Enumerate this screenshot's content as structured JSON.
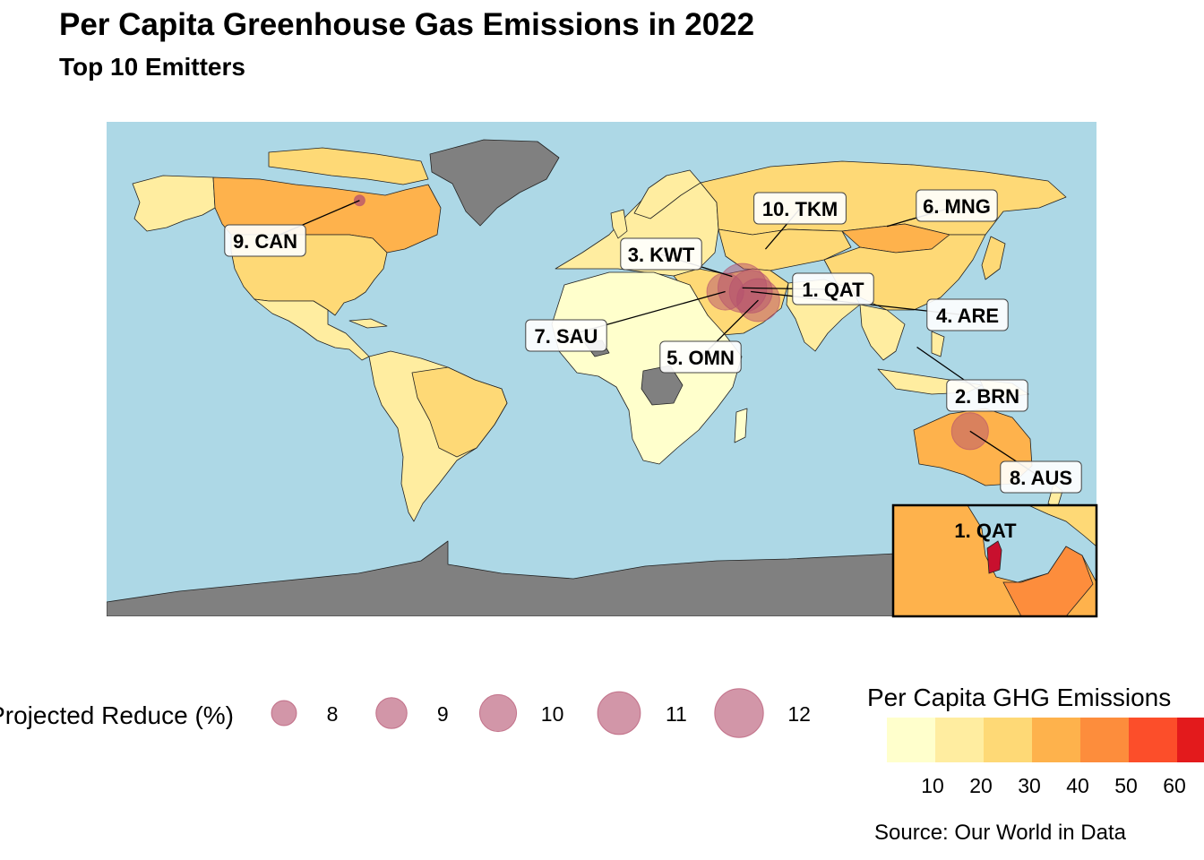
{
  "title": "Per Capita Greenhouse Gas Emissions in 2022",
  "subtitle": "Top 10 Emitters",
  "source": "Source: Our World in Data",
  "colors": {
    "ocean": "#add8e6",
    "no_data": "#808080",
    "bubble": "#b4506e",
    "inset_highlight": "#c8102e",
    "scale": [
      "#ffffcc",
      "#ffeda0",
      "#fed976",
      "#feb24c",
      "#fd8d3c",
      "#fc4e2a",
      "#e31a1c"
    ]
  },
  "chart_data": {
    "type": "map",
    "projection": "equirectangular",
    "variable": "Per Capita GHG Emissions",
    "top_emitters": [
      {
        "rank": 1,
        "code": "QAT",
        "label": "1. QAT",
        "lon": 51.2,
        "lat": 25.3,
        "reduce_pct": 12
      },
      {
        "rank": 2,
        "code": "BRN",
        "label": "2. BRN",
        "lon": 114.7,
        "lat": 4.5,
        "reduce_pct": null
      },
      {
        "rank": 3,
        "code": "KWT",
        "label": "3. KWT",
        "lon": 47.5,
        "lat": 29.3,
        "reduce_pct": null
      },
      {
        "rank": 4,
        "code": "ARE",
        "label": "4. ARE",
        "lon": 54.3,
        "lat": 24.0,
        "reduce_pct": 11
      },
      {
        "rank": 5,
        "code": "OMN",
        "label": "5. OMN",
        "lon": 57.0,
        "lat": 21.0,
        "reduce_pct": 11
      },
      {
        "rank": 6,
        "code": "MNG",
        "label": "6. MNG",
        "lon": 103.8,
        "lat": 46.9,
        "reduce_pct": null
      },
      {
        "rank": 7,
        "code": "SAU",
        "label": "7. SAU",
        "lon": 45.0,
        "lat": 24.0,
        "reduce_pct": 10
      },
      {
        "rank": 8,
        "code": "AUS",
        "label": "8. AUS",
        "lon": 134.0,
        "lat": -25.0,
        "reduce_pct": 10
      },
      {
        "rank": 9,
        "code": "CAN",
        "label": "9. CAN",
        "lon": -88.0,
        "lat": 56.0,
        "reduce_pct": 7
      },
      {
        "rank": 10,
        "code": "TKM",
        "label": "10. TKM",
        "lon": 59.6,
        "lat": 38.9,
        "reduce_pct": null
      }
    ],
    "inset": {
      "label": "1. QAT",
      "region": "Qatar"
    },
    "size_legend": {
      "title": "Projected Reduce (%)",
      "breaks": [
        8,
        9,
        10,
        11,
        12
      ]
    },
    "color_legend": {
      "title": "Per Capita GHG Emissions",
      "tick_labels": [
        "10",
        "20",
        "30",
        "40",
        "50",
        "60"
      ]
    }
  }
}
